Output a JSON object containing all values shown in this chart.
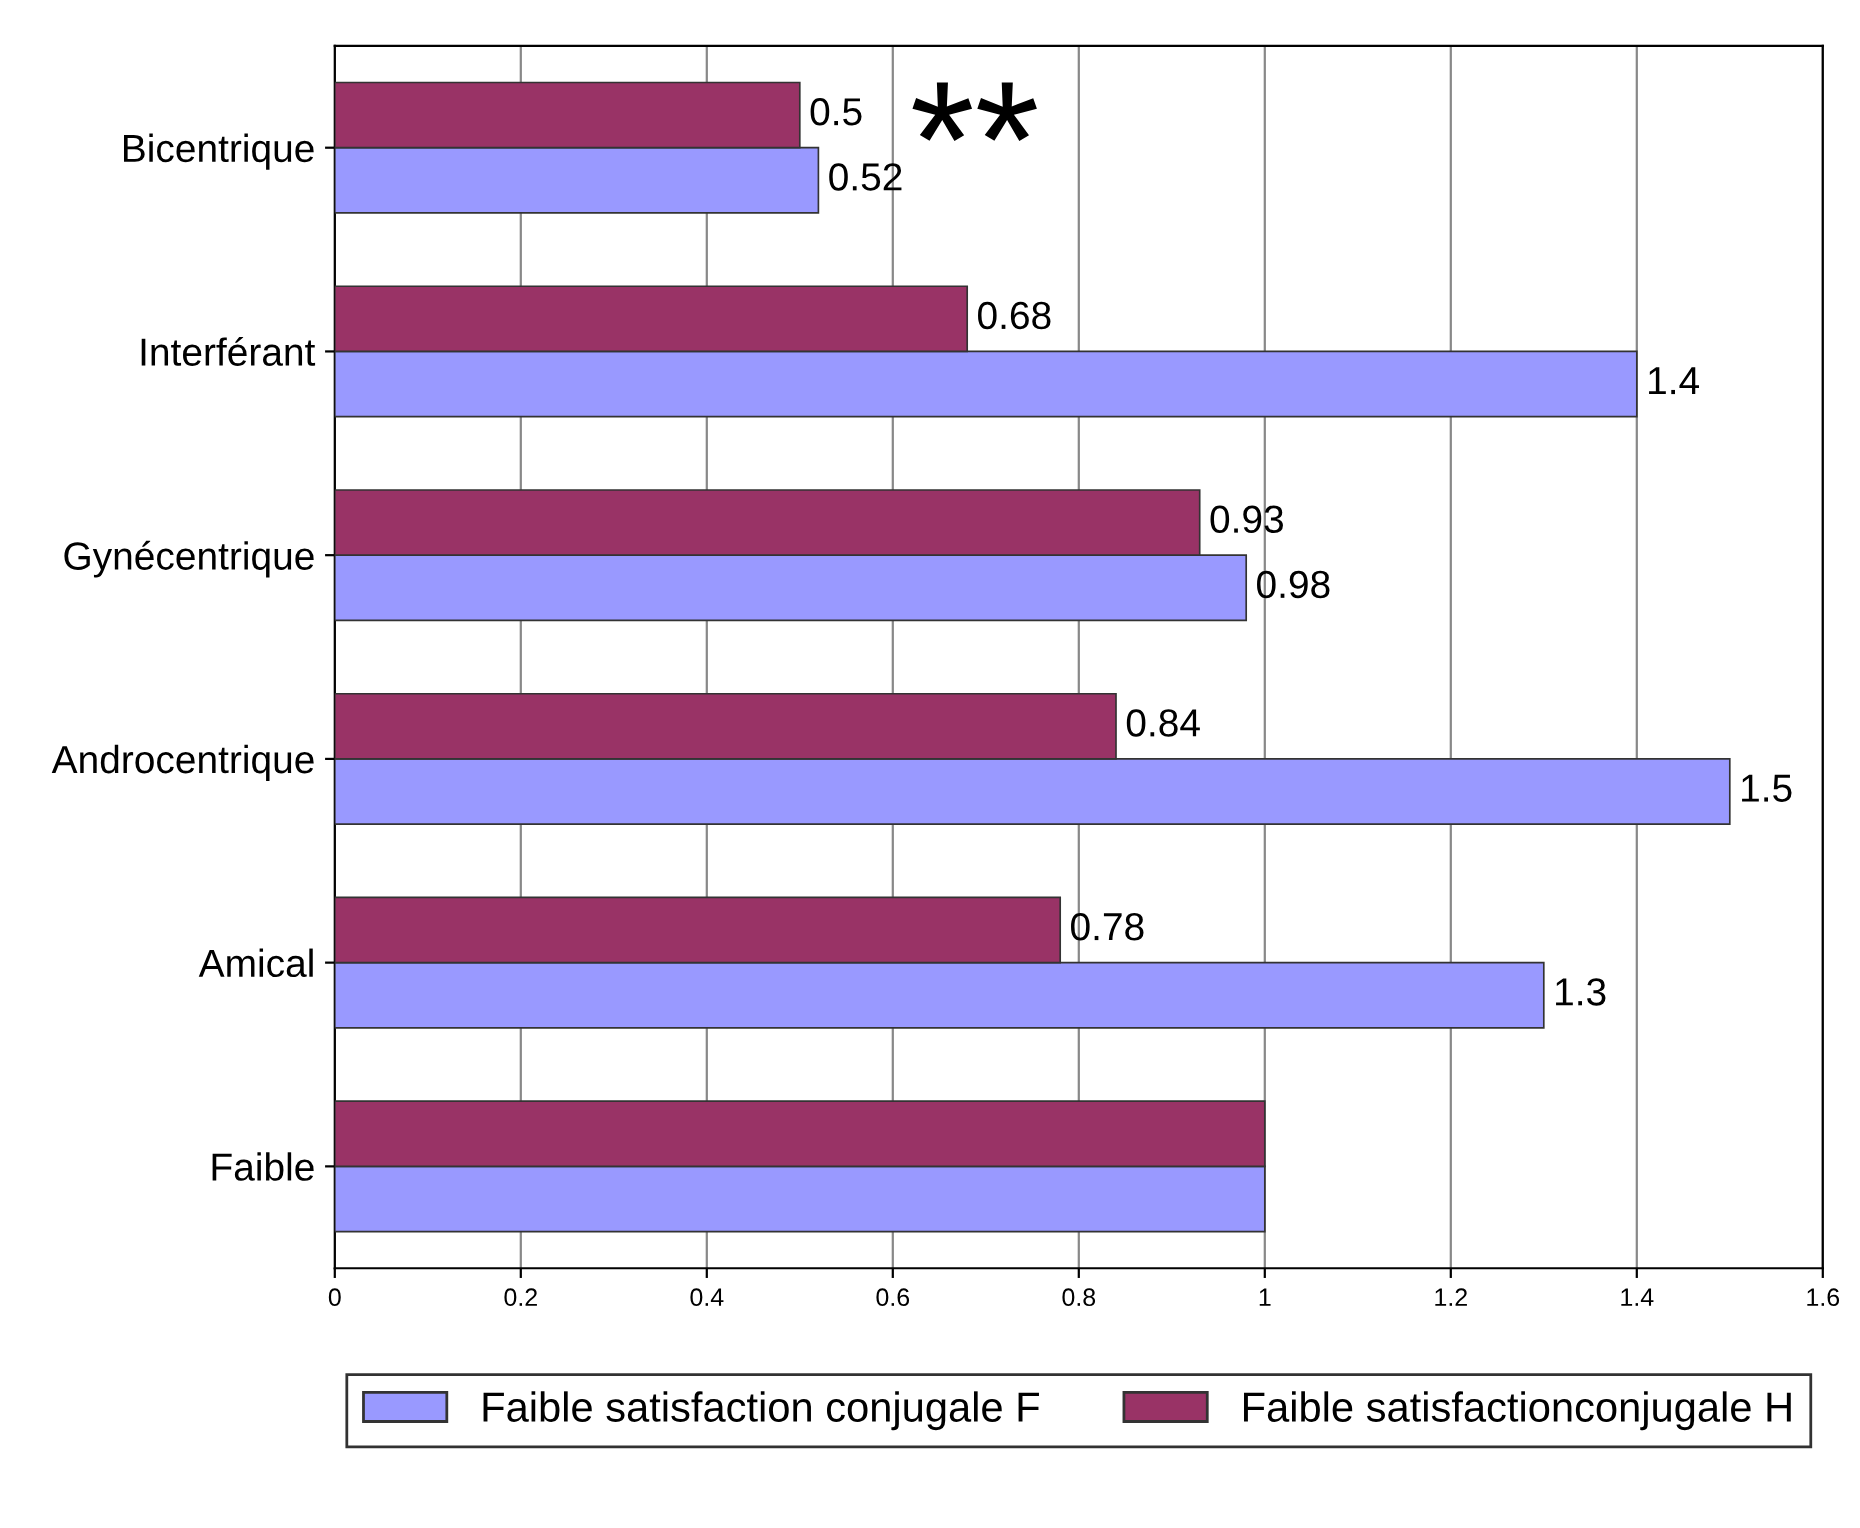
{
  "chart_data": {
    "type": "bar",
    "orientation": "horizontal",
    "categories": [
      "Bicentrique",
      "Interférant",
      "Gynécentrique",
      "Androcentrique",
      "Amical",
      "Faible"
    ],
    "series": [
      {
        "name": "Faible satisfaction conjugale F",
        "color": "#9999ff",
        "values": [
          0.52,
          1.4,
          0.98,
          1.5,
          1.3,
          1
        ],
        "value_labels": [
          "0.52",
          "1.4",
          "0.98",
          "1.5",
          "1.3",
          null
        ]
      },
      {
        "name": "Faible satisfactionconjugale H",
        "color": "#993366",
        "values": [
          0.5,
          0.68,
          0.93,
          0.84,
          0.78,
          1
        ],
        "value_labels": [
          "0.5",
          "0.68",
          "0.93",
          "0.84",
          "0.78",
          null
        ]
      }
    ],
    "xlim": [
      0,
      1.6
    ],
    "xticks": [
      0,
      0.2,
      0.4,
      0.6,
      0.8,
      1,
      1.2,
      1.4,
      1.6
    ],
    "grid": "x",
    "legend": "bottom",
    "annotations": [
      "**"
    ]
  }
}
